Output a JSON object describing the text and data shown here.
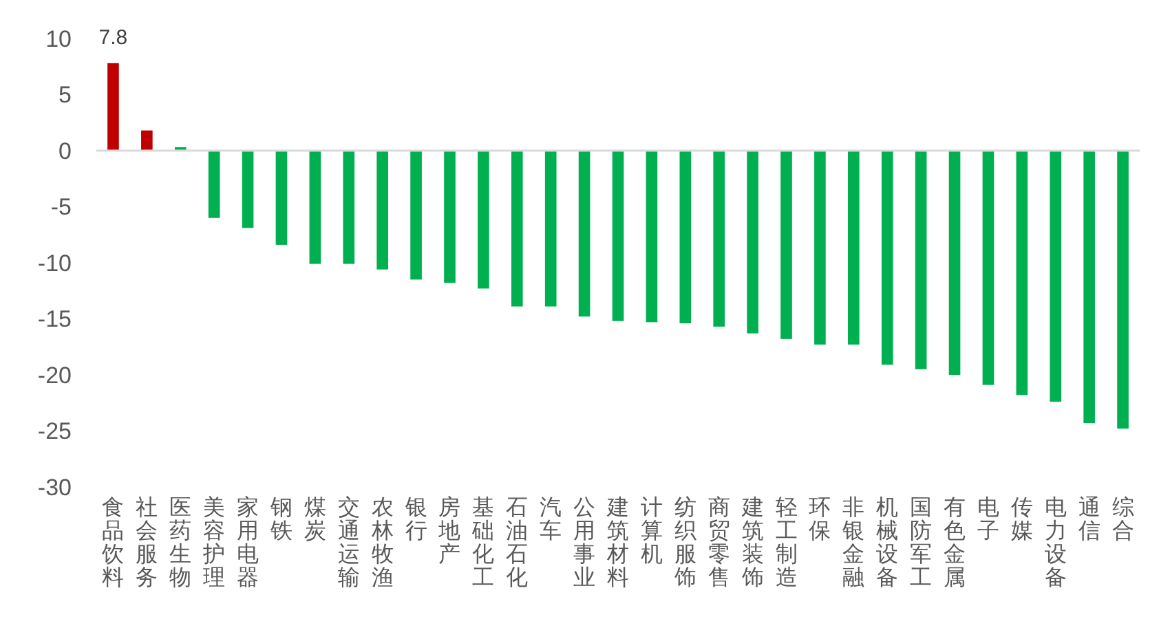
{
  "chart_data": {
    "type": "bar",
    "categories": [
      "食品饮料",
      "社会服务",
      "医药生物",
      "美容护理",
      "家用电器",
      "钢铁",
      "煤炭",
      "交通运输",
      "农林牧渔",
      "银行",
      "房地产",
      "基础化工",
      "石油石化",
      "汽车",
      "公用事业",
      "建筑材料",
      "计算机",
      "纺织服饰",
      "商贸零售",
      "建筑装饰",
      "轻工制造",
      "环保",
      "非银金融",
      "机械设备",
      "国防军工",
      "有色金属",
      "电子",
      "传媒",
      "电力设备",
      "通信",
      "综合"
    ],
    "values": [
      7.8,
      1.8,
      0.3,
      -6.0,
      -6.9,
      -8.4,
      -10.1,
      -10.1,
      -10.6,
      -11.5,
      -11.8,
      -12.3,
      -13.9,
      -13.9,
      -14.8,
      -15.2,
      -15.3,
      -15.4,
      -15.7,
      -16.3,
      -16.8,
      -17.3,
      -17.3,
      -19.1,
      -19.5,
      -20.0,
      -20.9,
      -21.8,
      -22.4,
      -24.3,
      -24.8
    ],
    "colors": [
      "#c00000",
      "#c00000",
      "#00b050",
      "#00b050",
      "#00b050",
      "#00b050",
      "#00b050",
      "#00b050",
      "#00b050",
      "#00b050",
      "#00b050",
      "#00b050",
      "#00b050",
      "#00b050",
      "#00b050",
      "#00b050",
      "#00b050",
      "#00b050",
      "#00b050",
      "#00b050",
      "#00b050",
      "#00b050",
      "#00b050",
      "#00b050",
      "#00b050",
      "#00b050",
      "#00b050",
      "#00b050",
      "#00b050",
      "#00b050",
      "#00b050"
    ],
    "value_labels": [
      "7.8",
      null,
      null,
      null,
      null,
      null,
      null,
      null,
      null,
      null,
      null,
      null,
      null,
      null,
      null,
      null,
      null,
      null,
      null,
      null,
      null,
      null,
      null,
      null,
      null,
      null,
      null,
      null,
      null,
      null,
      null
    ],
    "ref_lines": [
      {
        "axis": "y",
        "value": 0,
        "color": "#d9d9d9"
      }
    ],
    "ylim": [
      -30,
      10
    ],
    "yticks": [
      10,
      5,
      0,
      -5,
      -10,
      -15,
      -20,
      -25,
      -30
    ],
    "grid": false
  }
}
